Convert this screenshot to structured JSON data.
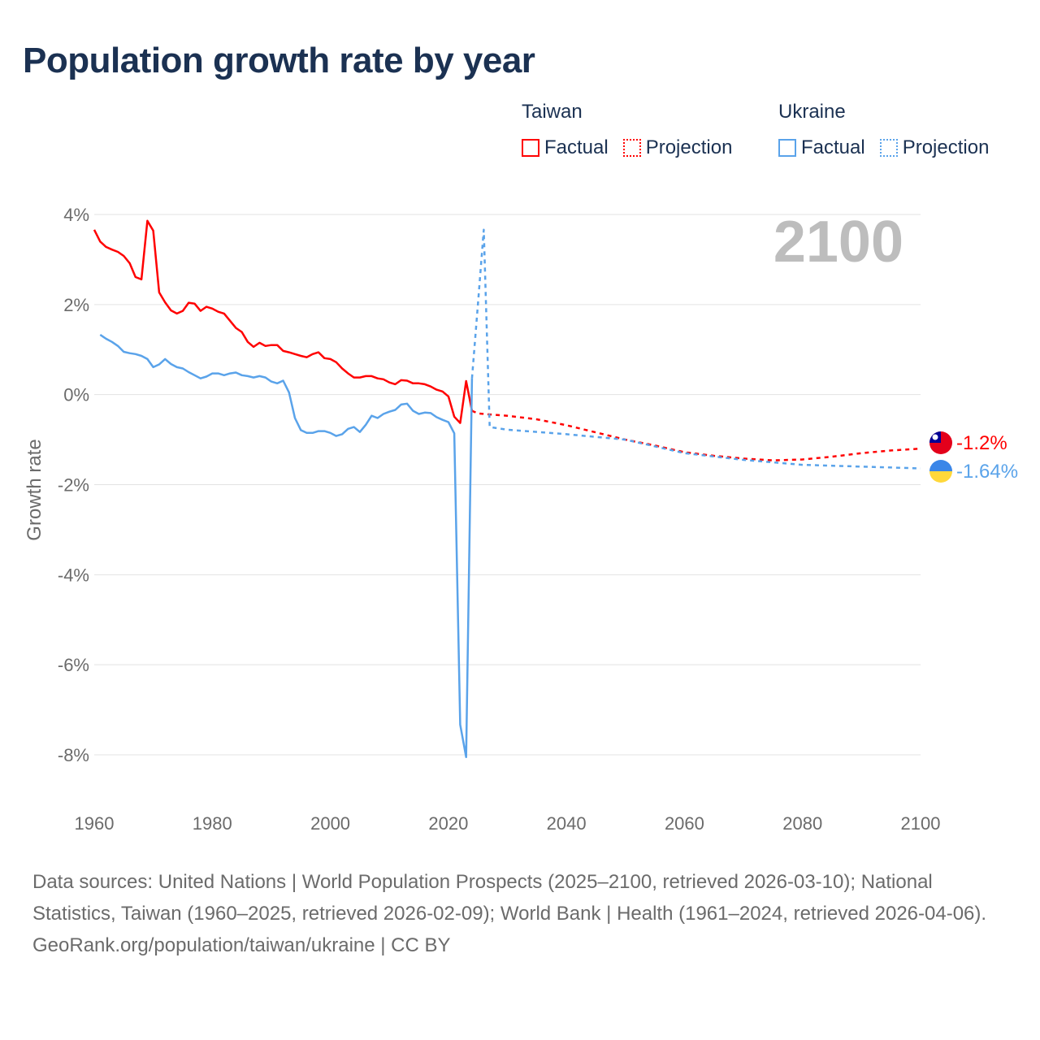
{
  "title": "Population growth rate by year",
  "legend": {
    "groups": [
      {
        "country": "Taiwan",
        "color": "#ff0000",
        "factual_label": "Factual",
        "projection_label": "Projection"
      },
      {
        "country": "Ukraine",
        "color": "#5aa3ea",
        "factual_label": "Factual",
        "projection_label": "Projection"
      }
    ]
  },
  "year_display": "2100",
  "end_labels": {
    "taiwan": "-1.2%",
    "ukraine": "-1.64%"
  },
  "footer": {
    "sources": "Data sources: United Nations | World Population Prospects (2025–2100, retrieved 2026-03-10); National Statistics, Taiwan (1960–2025, retrieved 2026-02-09); World Bank | Health (1961–2024, retrieved 2026-04-06).",
    "credit": "GeoRank.org/population/taiwan/ukraine | CC BY"
  },
  "chart_data": {
    "type": "line",
    "title": "Population growth rate by year",
    "xlabel": "",
    "ylabel": "Growth rate",
    "xlim": [
      1960,
      2100
    ],
    "ylim": [
      -8,
      4
    ],
    "xticks": [
      "1960",
      "1980",
      "2000",
      "2020",
      "2040",
      "2060",
      "2080",
      "2100"
    ],
    "yticks": [
      "4%",
      "2%",
      "0%",
      "-2%",
      "-4%",
      "-6%",
      "-8%"
    ],
    "ytick_values": [
      4,
      2,
      0,
      -2,
      -4,
      -6,
      -8
    ],
    "xtick_values": [
      1960,
      1980,
      2000,
      2020,
      2040,
      2060,
      2080,
      2100
    ],
    "grid": true,
    "legend_position": "top-right",
    "series": [
      {
        "name": "Taiwan Factual",
        "color": "#ff0000",
        "dashed": false,
        "x": [
          1960,
          1961,
          1962,
          1963,
          1964,
          1965,
          1966,
          1967,
          1968,
          1969,
          1970,
          1971,
          1972,
          1973,
          1974,
          1975,
          1976,
          1977,
          1978,
          1979,
          1980,
          1981,
          1982,
          1983,
          1984,
          1985,
          1986,
          1987,
          1988,
          1989,
          1990,
          1991,
          1992,
          1993,
          1994,
          1995,
          1996,
          1997,
          1998,
          1999,
          2000,
          2001,
          2002,
          2003,
          2004,
          2005,
          2006,
          2007,
          2008,
          2009,
          2010,
          2011,
          2012,
          2013,
          2014,
          2015,
          2016,
          2017,
          2018,
          2019,
          2020,
          2021,
          2022,
          2023,
          2024
        ],
        "y": [
          3.66,
          3.4,
          3.28,
          3.22,
          3.17,
          3.08,
          2.92,
          2.61,
          2.56,
          3.86,
          3.64,
          2.27,
          2.05,
          1.87,
          1.8,
          1.86,
          2.04,
          2.02,
          1.86,
          1.95,
          1.91,
          1.84,
          1.8,
          1.64,
          1.48,
          1.39,
          1.17,
          1.06,
          1.15,
          1.08,
          1.1,
          1.1,
          0.97,
          0.94,
          0.9,
          0.86,
          0.83,
          0.9,
          0.94,
          0.81,
          0.79,
          0.72,
          0.58,
          0.47,
          0.38,
          0.38,
          0.41,
          0.41,
          0.36,
          0.34,
          0.27,
          0.23,
          0.32,
          0.31,
          0.25,
          0.25,
          0.23,
          0.18,
          0.11,
          0.07,
          -0.04,
          -0.49,
          -0.63,
          0.3,
          -0.36
        ]
      },
      {
        "name": "Taiwan Projection",
        "color": "#ff0000",
        "dashed": true,
        "x": [
          2024,
          2025,
          2030,
          2035,
          2040,
          2045,
          2050,
          2055,
          2060,
          2065,
          2070,
          2075,
          2080,
          2085,
          2090,
          2095,
          2100
        ],
        "y": [
          -0.36,
          -0.42,
          -0.47,
          -0.55,
          -0.68,
          -0.84,
          -1.0,
          -1.13,
          -1.28,
          -1.36,
          -1.42,
          -1.46,
          -1.44,
          -1.38,
          -1.3,
          -1.24,
          -1.2
        ]
      },
      {
        "name": "Ukraine Factual",
        "color": "#5aa3ea",
        "dashed": false,
        "x": [
          1961,
          1962,
          1963,
          1964,
          1965,
          1966,
          1967,
          1968,
          1969,
          1970,
          1971,
          1972,
          1973,
          1974,
          1975,
          1976,
          1977,
          1978,
          1979,
          1980,
          1981,
          1982,
          1983,
          1984,
          1985,
          1986,
          1987,
          1988,
          1989,
          1990,
          1991,
          1992,
          1993,
          1994,
          1995,
          1996,
          1997,
          1998,
          1999,
          2000,
          2001,
          2002,
          2003,
          2004,
          2005,
          2006,
          2007,
          2008,
          2009,
          2010,
          2011,
          2012,
          2013,
          2014,
          2015,
          2016,
          2017,
          2018,
          2019,
          2020,
          2021,
          2022,
          2023,
          2024
        ],
        "y": [
          1.33,
          1.24,
          1.17,
          1.08,
          0.95,
          0.92,
          0.9,
          0.86,
          0.79,
          0.61,
          0.67,
          0.79,
          0.68,
          0.61,
          0.58,
          0.5,
          0.43,
          0.36,
          0.4,
          0.47,
          0.47,
          0.43,
          0.47,
          0.49,
          0.43,
          0.41,
          0.38,
          0.41,
          0.38,
          0.29,
          0.25,
          0.31,
          0.05,
          -0.52,
          -0.79,
          -0.85,
          -0.85,
          -0.81,
          -0.81,
          -0.85,
          -0.92,
          -0.88,
          -0.76,
          -0.72,
          -0.83,
          -0.67,
          -0.47,
          -0.52,
          -0.43,
          -0.38,
          -0.34,
          -0.22,
          -0.2,
          -0.36,
          -0.43,
          -0.4,
          -0.41,
          -0.5,
          -0.56,
          -0.61,
          -0.86,
          -7.33,
          -8.05,
          0.36
        ]
      },
      {
        "name": "Ukraine Projection",
        "color": "#5aa3ea",
        "dashed": true,
        "x": [
          2024,
          2025,
          2026,
          2027,
          2030,
          2040,
          2050,
          2060,
          2070,
          2080,
          2090,
          2100
        ],
        "y": [
          0.36,
          2.0,
          3.66,
          -0.72,
          -0.78,
          -0.88,
          -1.0,
          -1.3,
          -1.45,
          -1.56,
          -1.6,
          -1.64
        ]
      }
    ]
  }
}
